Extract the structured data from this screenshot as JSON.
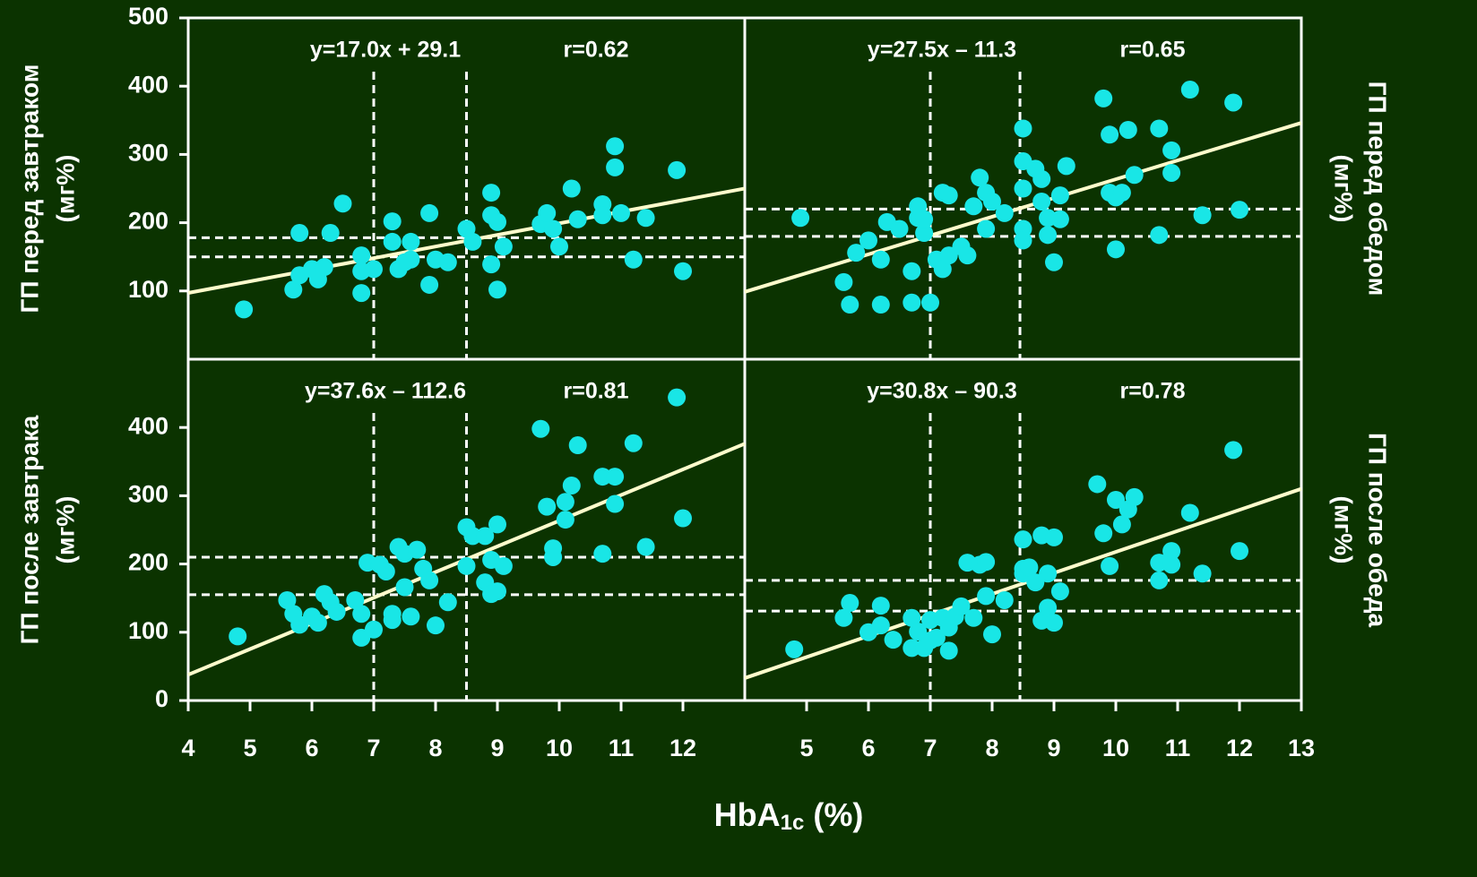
{
  "x_label": {
    "main": "HbA",
    "sub": "1c",
    "unit": "(%)"
  },
  "chart_data": [
    {
      "type": "scatter",
      "y_label": "ГП перед завтраком",
      "y_unit": "(мг%)",
      "equation": "y=17.0x + 29.1",
      "r_text": "r=0.62",
      "fit": {
        "slope": 17.0,
        "intercept": 29.1
      },
      "x_refs": [
        7,
        8.5
      ],
      "y_refs": [
        150,
        178
      ],
      "xlim": [
        4,
        13
      ],
      "ylim": [
        0,
        500
      ],
      "yticks": [
        100,
        200,
        300,
        400,
        500
      ],
      "color": "#19e6e6",
      "fit_color": "#fffccc",
      "x": [
        4.9,
        5.8,
        5.7,
        5.8,
        6.0,
        6.1,
        6.2,
        6.3,
        6.5,
        6.8,
        6.8,
        6.8,
        7.0,
        7.3,
        7.3,
        7.4,
        7.5,
        7.6,
        7.6,
        7.9,
        7.9,
        8.0,
        8.2,
        8.5,
        8.6,
        8.9,
        8.9,
        8.9,
        9.0,
        9.0,
        9.1,
        9.7,
        9.8,
        9.9,
        10.0,
        10.2,
        10.3,
        10.7,
        10.7,
        10.9,
        10.9,
        11.0,
        11.2,
        11.4,
        11.9,
        12.0
      ],
      "values": [
        73,
        185,
        102,
        123,
        132,
        117,
        135,
        185,
        228,
        97,
        129,
        152,
        132,
        202,
        172,
        132,
        142,
        172,
        146,
        214,
        109,
        146,
        142,
        191,
        172,
        139,
        244,
        211,
        201,
        102,
        165,
        198,
        214,
        191,
        165,
        250,
        205,
        227,
        211,
        312,
        281,
        214,
        146,
        207,
        277,
        129
      ]
    },
    {
      "type": "scatter",
      "y_label": "ГП перед обедом",
      "y_unit": "(мг%)",
      "equation": "y=27.5x – 11.3",
      "r_text": "r=0.65",
      "fit": {
        "slope": 27.5,
        "intercept": -11.3
      },
      "x_refs": [
        7,
        8.45
      ],
      "y_refs": [
        220,
        180
      ],
      "xlim": [
        4,
        13
      ],
      "ylim": [
        0,
        500
      ],
      "color": "#19e6e6",
      "fit_color": "#fffccc",
      "x": [
        4.9,
        5.6,
        5.7,
        5.8,
        6.0,
        6.2,
        6.2,
        6.3,
        6.5,
        6.7,
        6.7,
        6.8,
        6.8,
        6.9,
        6.9,
        7.0,
        7.1,
        7.2,
        7.2,
        7.3,
        7.3,
        7.5,
        7.6,
        7.7,
        7.8,
        7.9,
        7.9,
        8.0,
        8.2,
        8.5,
        8.5,
        8.5,
        8.5,
        8.5,
        8.7,
        8.8,
        8.8,
        8.9,
        8.9,
        9.0,
        9.1,
        9.1,
        9.2,
        9.8,
        9.9,
        9.9,
        10.0,
        10.0,
        10.1,
        10.2,
        10.3,
        10.7,
        10.7,
        10.9,
        10.9,
        11.2,
        11.4,
        11.9,
        12.0
      ],
      "values": [
        207,
        113,
        80,
        156,
        174,
        146,
        80,
        201,
        191,
        83,
        129,
        207,
        224,
        185,
        205,
        83,
        146,
        132,
        244,
        240,
        152,
        165,
        152,
        224,
        266,
        244,
        191,
        231,
        214,
        338,
        290,
        250,
        191,
        174,
        279,
        264,
        231,
        207,
        182,
        142,
        240,
        205,
        283,
        382,
        329,
        244,
        237,
        161,
        244,
        336,
        270,
        338,
        182,
        306,
        273,
        395,
        211,
        376,
        219
      ]
    },
    {
      "type": "scatter",
      "y_label": "ГП после завтрака",
      "y_unit": "(мг%)",
      "equation": "y=37.6x – 112.6",
      "r_text": "r=0.81",
      "fit": {
        "slope": 37.6,
        "intercept": -112.6
      },
      "x_refs": [
        7,
        8.5
      ],
      "y_refs": [
        210,
        155
      ],
      "xlim": [
        4,
        13
      ],
      "ylim": [
        0,
        500
      ],
      "xticks": [
        4,
        5,
        6,
        7,
        8,
        9,
        10,
        11,
        12
      ],
      "yticks": [
        0,
        100,
        200,
        300,
        400
      ],
      "color": "#19e6e6",
      "fit_color": "#fffccc",
      "x": [
        4.8,
        5.6,
        5.7,
        5.8,
        6.0,
        6.1,
        6.2,
        6.3,
        6.4,
        6.7,
        6.8,
        6.8,
        6.9,
        7.0,
        7.1,
        7.2,
        7.3,
        7.3,
        7.4,
        7.5,
        7.5,
        7.6,
        7.7,
        7.8,
        7.9,
        8.0,
        8.2,
        8.5,
        8.5,
        8.6,
        8.8,
        8.8,
        8.9,
        8.9,
        9.0,
        9.0,
        9.1,
        9.7,
        9.8,
        9.9,
        9.9,
        10.1,
        10.1,
        10.2,
        10.3,
        10.7,
        10.7,
        10.9,
        10.9,
        11.2,
        11.4,
        11.9,
        12.0
      ],
      "values": [
        94,
        147,
        127,
        111,
        123,
        114,
        156,
        144,
        130,
        147,
        127,
        92,
        202,
        104,
        199,
        189,
        118,
        127,
        225,
        215,
        166,
        123,
        221,
        193,
        176,
        110,
        144,
        197,
        254,
        241,
        241,
        173,
        156,
        206,
        258,
        160,
        197,
        398,
        284,
        223,
        210,
        265,
        291,
        315,
        374,
        215,
        328,
        328,
        288,
        377,
        225,
        444,
        267
      ]
    },
    {
      "type": "scatter",
      "y_label": "ГП после обеда",
      "y_unit": "(мг%)",
      "equation": "y=30.8x – 90.3",
      "r_text": "r=0.78",
      "fit": {
        "slope": 30.8,
        "intercept": -90.3
      },
      "x_refs": [
        7,
        8.45
      ],
      "y_refs": [
        176,
        131
      ],
      "xlim": [
        4,
        13
      ],
      "ylim": [
        0,
        500
      ],
      "xticks": [
        5,
        6,
        7,
        8,
        9,
        10,
        11,
        12,
        13
      ],
      "color": "#19e6e6",
      "fit_color": "#fffccc",
      "x": [
        4.8,
        5.6,
        5.7,
        6.0,
        6.2,
        6.2,
        6.4,
        6.7,
        6.7,
        6.8,
        6.9,
        7.0,
        7.0,
        7.1,
        7.2,
        7.3,
        7.3,
        7.4,
        7.5,
        7.6,
        7.7,
        7.8,
        7.9,
        7.9,
        8.0,
        8.2,
        8.5,
        8.5,
        8.5,
        8.6,
        8.7,
        8.8,
        8.8,
        8.9,
        8.9,
        9.0,
        9.0,
        9.1,
        9.7,
        9.8,
        9.9,
        10.0,
        10.1,
        10.2,
        10.3,
        10.7,
        10.7,
        10.9,
        10.9,
        11.2,
        11.4,
        11.9,
        12.0
      ],
      "values": [
        75,
        121,
        143,
        100,
        110,
        139,
        89,
        121,
        77,
        101,
        77,
        88,
        118,
        92,
        121,
        73,
        107,
        123,
        138,
        202,
        121,
        199,
        203,
        153,
        97,
        147,
        236,
        193,
        186,
        195,
        173,
        117,
        242,
        136,
        186,
        114,
        239,
        160,
        317,
        245,
        197,
        294,
        258,
        280,
        298,
        202,
        176,
        219,
        199,
        275,
        186,
        367,
        219
      ]
    }
  ]
}
